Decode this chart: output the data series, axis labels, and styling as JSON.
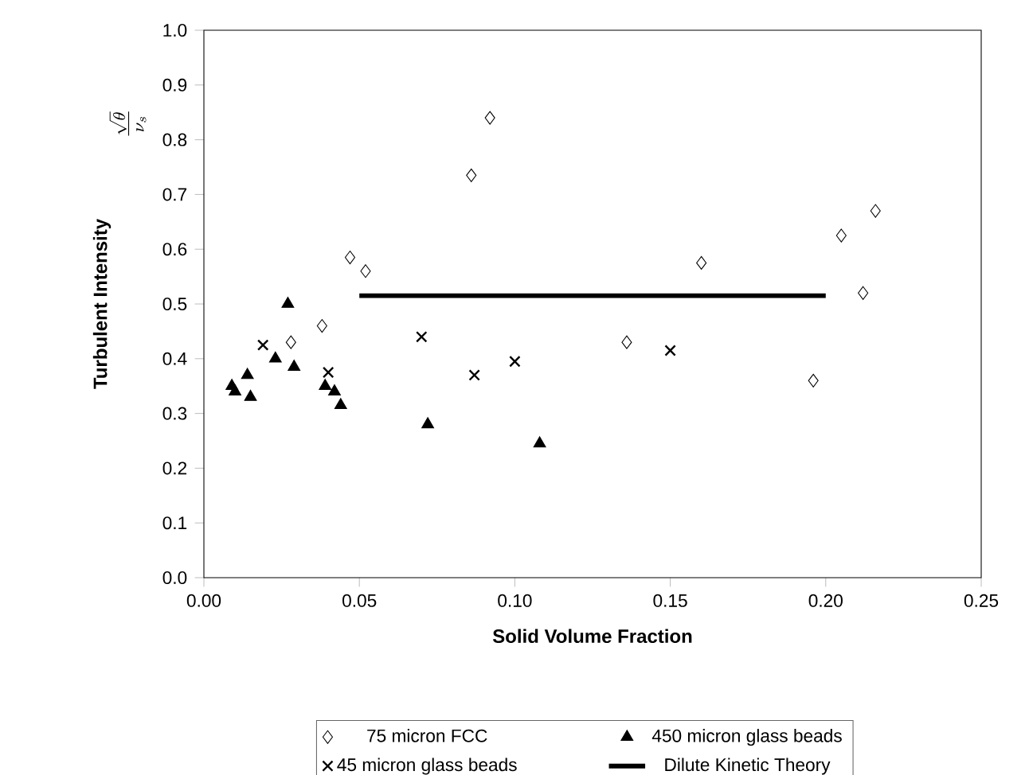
{
  "chart_data": {
    "type": "scatter",
    "xlabel": "Solid Volume Fraction",
    "ylabel": "Turbulent Intensity",
    "annotations": [
      "\\frac{\\sqrt{\\theta}}{\\nu_s}"
    ],
    "xlim": [
      0,
      0.25
    ],
    "xticks": [
      {
        "value": 0,
        "label": "0.00"
      },
      0.05,
      {
        "value": 0.1,
        "label": "0.10"
      },
      0.15,
      {
        "value": 0.2,
        "label": "0.20"
      },
      0.25
    ],
    "ylim": [
      0,
      1
    ],
    "yticks": [
      {
        "value": 0,
        "label": "0.0"
      },
      0.1,
      0.2,
      0.3,
      0.4,
      0.5,
      0.6,
      0.7,
      0.8,
      0.9,
      {
        "value": 1,
        "label": "1.0"
      }
    ],
    "grid": false,
    "legend": "bottom",
    "series": [
      {
        "name": "75 micron FCC",
        "color": "#000000",
        "marker": "diamond",
        "x": [
          0.028,
          0.038,
          0.047,
          0.052,
          0.086,
          0.092,
          0.136,
          0.16,
          0.196,
          0.205,
          0.212,
          0.216
        ],
        "values": [
          0.43,
          0.46,
          0.585,
          0.56,
          0.735,
          0.84,
          0.43,
          0.575,
          0.36,
          0.625,
          0.52,
          0.67
        ]
      },
      {
        "name": "450 micron glass beads",
        "color": "#000000",
        "marker": "triangle",
        "x": [
          0.009,
          0.01,
          0.014,
          0.015,
          0.023,
          0.027,
          0.029,
          0.039,
          0.042,
          0.044,
          0.072,
          0.108
        ],
        "values": [
          0.35,
          0.34,
          0.37,
          0.33,
          0.4,
          0.5,
          0.385,
          0.35,
          0.34,
          0.315,
          0.28,
          0.245
        ]
      },
      {
        "name": "45 micron glass beads",
        "color": "#000000",
        "marker": "cross",
        "x": [
          0.019,
          0.04,
          0.07,
          0.087,
          0.1,
          0.15
        ],
        "values": [
          0.425,
          0.375,
          0.44,
          0.37,
          0.395,
          0.415
        ]
      },
      {
        "name": "Dilute Kinetic Theory",
        "color": "#000000",
        "type": "line",
        "marker": "none",
        "x": [
          0.05,
          0.2
        ],
        "values": [
          0.515,
          0.515
        ]
      }
    ]
  }
}
